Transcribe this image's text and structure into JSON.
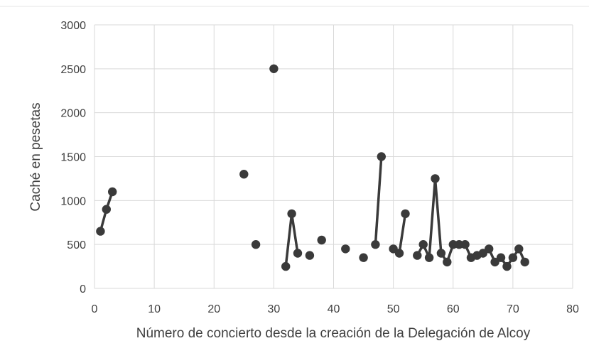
{
  "chart_data": {
    "type": "scatter",
    "xlabel": "Número de concierto desde la creación de la Delegación de Alcoy",
    "ylabel": "Caché en pesetas",
    "xlim": [
      0,
      80
    ],
    "ylim": [
      0,
      3000
    ],
    "x_ticks": [
      "0",
      "10",
      "20",
      "30",
      "40",
      "50",
      "60",
      "70",
      "80"
    ],
    "y_ticks": [
      "0",
      "500",
      "1000",
      "1500",
      "2000",
      "2500",
      "3000"
    ],
    "grid": true,
    "colors": {
      "marker": "#3a3a3a",
      "line": "#3a3a3a",
      "grid": "#d9d9d9"
    },
    "segments": [
      [
        [
          1,
          650
        ],
        [
          2,
          900
        ],
        [
          3,
          1100
        ]
      ],
      [
        [
          25,
          1300
        ]
      ],
      [
        [
          27,
          500
        ]
      ],
      [
        [
          30,
          2500
        ]
      ],
      [
        [
          32,
          250
        ],
        [
          33,
          850
        ],
        [
          34,
          400
        ]
      ],
      [
        [
          36,
          375
        ]
      ],
      [
        [
          38,
          550
        ]
      ],
      [
        [
          42,
          450
        ]
      ],
      [
        [
          45,
          350
        ]
      ],
      [
        [
          47,
          500
        ],
        [
          48,
          1500
        ]
      ],
      [
        [
          50,
          450
        ],
        [
          51,
          400
        ],
        [
          52,
          850
        ]
      ],
      [
        [
          54,
          375
        ],
        [
          55,
          500
        ],
        [
          56,
          350
        ],
        [
          57,
          1250
        ],
        [
          58,
          400
        ],
        [
          59,
          300
        ],
        [
          60,
          500
        ],
        [
          61,
          500
        ],
        [
          62,
          500
        ],
        [
          63,
          350
        ],
        [
          64,
          375
        ],
        [
          65,
          400
        ],
        [
          66,
          450
        ],
        [
          67,
          300
        ],
        [
          68,
          350
        ],
        [
          69,
          250
        ],
        [
          70,
          350
        ],
        [
          71,
          450
        ],
        [
          72,
          300
        ]
      ]
    ]
  }
}
